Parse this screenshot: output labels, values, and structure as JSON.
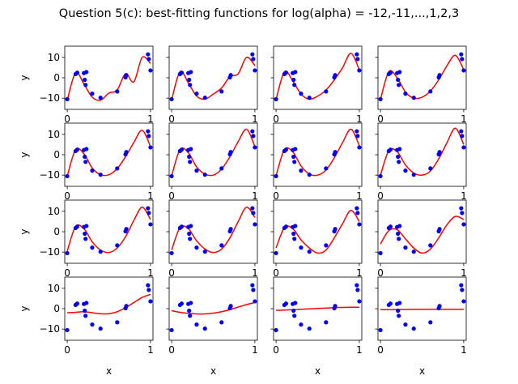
{
  "title": "Question 5(c): best-fitting functions for log(alpha) = -12,-11,...,1,2,3",
  "colors": {
    "fit": "#ff0000",
    "points": "#0000ff",
    "axes": "#000000"
  },
  "chart_data": {
    "type": "scatter",
    "layout": {
      "rows": 4,
      "cols": 4
    },
    "xlabel": "x",
    "ylabel": "y",
    "xlim": [
      -0.03,
      1.03
    ],
    "ylim": [
      -15.5,
      15.5
    ],
    "xticks": [
      0,
      1
    ],
    "xtick_labels": [
      "0",
      "1"
    ],
    "yticks": [
      -10,
      0,
      10
    ],
    "ytick_labels": [
      "−10",
      "0",
      "10"
    ],
    "points": {
      "x": [
        0.0,
        0.1,
        0.12,
        0.2,
        0.21,
        0.22,
        0.23,
        0.3,
        0.4,
        0.6,
        0.7,
        0.71,
        0.97,
        0.98,
        1.0
      ],
      "y": [
        -10.5,
        1.8,
        2.5,
        2.3,
        -1.0,
        -3.5,
        2.8,
        -7.8,
        -9.8,
        -6.7,
        0.2,
        1.3,
        11.5,
        9.2,
        3.6
      ]
    },
    "log_alpha": [
      -12,
      -11,
      -10,
      -9,
      -8,
      -7,
      -6,
      -5,
      -4,
      -3,
      -2,
      -1,
      0,
      1,
      2,
      3
    ],
    "fits": [
      {
        "x": [
          0,
          0.1,
          0.2,
          0.3,
          0.4,
          0.5,
          0.6,
          0.7,
          0.8,
          0.9,
          1.0
        ],
        "y": [
          -11,
          2.5,
          -3,
          -9.5,
          -11,
          -7.5,
          -6,
          2,
          -2,
          10,
          7
        ]
      },
      {
        "x": [
          0,
          0.1,
          0.2,
          0.3,
          0.4,
          0.5,
          0.6,
          0.7,
          0.8,
          0.9,
          1.0
        ],
        "y": [
          -10.8,
          3,
          -2.5,
          -9,
          -10.5,
          -8,
          -5,
          0.5,
          2,
          10,
          6
        ]
      },
      {
        "x": [
          0,
          0.1,
          0.2,
          0.3,
          0.4,
          0.5,
          0.6,
          0.7,
          0.8,
          0.9,
          1.0
        ],
        "y": [
          -10.7,
          3,
          -1.5,
          -8,
          -10.5,
          -9,
          -6,
          -1,
          5,
          12,
          4
        ]
      },
      {
        "x": [
          0,
          0.1,
          0.2,
          0.3,
          0.4,
          0.5,
          0.6,
          0.7,
          0.8,
          0.9,
          1.0
        ],
        "y": [
          -10.6,
          3,
          0,
          -7,
          -10,
          -9.5,
          -6.5,
          -1,
          6,
          11,
          4
        ]
      },
      {
        "x": [
          0,
          0.1,
          0.2,
          0.3,
          0.4,
          0.5,
          0.6,
          0.7,
          0.8,
          0.9,
          1.0
        ],
        "y": [
          -10.5,
          2.5,
          0.5,
          -6.5,
          -9.8,
          -9.8,
          -6.8,
          -1,
          6,
          12,
          4
        ]
      },
      {
        "x": [
          0,
          0.1,
          0.2,
          0.3,
          0.4,
          0.5,
          0.6,
          0.7,
          0.8,
          0.9,
          1.0
        ],
        "y": [
          -10.4,
          2.5,
          1,
          -6,
          -9.5,
          -10,
          -7,
          -1,
          6.5,
          12.5,
          4
        ]
      },
      {
        "x": [
          0,
          0.1,
          0.2,
          0.3,
          0.4,
          0.5,
          0.6,
          0.7,
          0.8,
          0.9,
          1.0
        ],
        "y": [
          -10.3,
          2.5,
          1.5,
          -5.5,
          -9.5,
          -10,
          -7.5,
          -1.5,
          6,
          12.5,
          4.5
        ]
      },
      {
        "x": [
          0,
          0.1,
          0.2,
          0.3,
          0.4,
          0.5,
          0.6,
          0.7,
          0.8,
          0.9,
          1.0
        ],
        "y": [
          -10,
          2,
          1.5,
          -5,
          -9,
          -10,
          -8,
          -2,
          6,
          13,
          5
        ]
      },
      {
        "x": [
          0,
          0.1,
          0.2,
          0.3,
          0.4,
          0.5,
          0.6,
          0.7,
          0.8,
          0.9,
          1.0
        ],
        "y": [
          -9.5,
          2.5,
          1.5,
          -5,
          -9,
          -10.2,
          -8,
          -2.5,
          5.5,
          12,
          6
        ]
      },
      {
        "x": [
          0,
          0.1,
          0.2,
          0.3,
          0.4,
          0.5,
          0.6,
          0.7,
          0.8,
          0.9,
          1.0
        ],
        "y": [
          -9,
          2,
          1.5,
          -4.5,
          -8.5,
          -10.2,
          -8.5,
          -3,
          5,
          12,
          7
        ]
      },
      {
        "x": [
          0,
          0.1,
          0.2,
          0.3,
          0.4,
          0.5,
          0.6,
          0.7,
          0.8,
          0.9,
          1.0
        ],
        "y": [
          -8,
          2,
          1.5,
          -4,
          -8,
          -10.5,
          -9,
          -3,
          4,
          10.5,
          5
        ]
      },
      {
        "x": [
          0,
          0.1,
          0.2,
          0.3,
          0.4,
          0.5,
          0.6,
          0.7,
          0.8,
          0.9,
          1.0
        ],
        "y": [
          -6,
          0.5,
          1,
          -3.5,
          -8,
          -10.5,
          -8.5,
          -3,
          3.5,
          7.5,
          6
        ]
      },
      {
        "x": [
          0,
          0.1,
          0.2,
          0.3,
          0.4,
          0.5,
          0.6,
          0.7,
          0.8,
          0.9,
          1.0
        ],
        "y": [
          -2,
          -1.8,
          -1.5,
          -2,
          -2.5,
          -2.5,
          -1.5,
          0.5,
          3,
          5.5,
          7
        ]
      },
      {
        "x": [
          0,
          0.1,
          0.2,
          0.3,
          0.4,
          0.5,
          0.6,
          0.7,
          0.8,
          0.9,
          1.0
        ],
        "y": [
          -1,
          -1.8,
          -2.3,
          -2.6,
          -2.6,
          -2.2,
          -1.5,
          -0.5,
          0.8,
          2,
          3
        ]
      },
      {
        "x": [
          0,
          0.1,
          0.2,
          0.3,
          0.4,
          0.5,
          0.6,
          0.7,
          0.8,
          0.9,
          1.0
        ],
        "y": [
          -0.8,
          -0.7,
          -0.5,
          -0.3,
          -0.1,
          0.1,
          0.3,
          0.5,
          0.6,
          0.7,
          0.7
        ]
      },
      {
        "x": [
          0,
          0.1,
          0.2,
          0.3,
          0.4,
          0.5,
          0.6,
          0.7,
          0.8,
          0.9,
          1.0
        ],
        "y": [
          -0.5,
          -0.5,
          -0.45,
          -0.4,
          -0.35,
          -0.3,
          -0.3,
          -0.3,
          -0.3,
          -0.3,
          -0.3
        ]
      }
    ]
  }
}
